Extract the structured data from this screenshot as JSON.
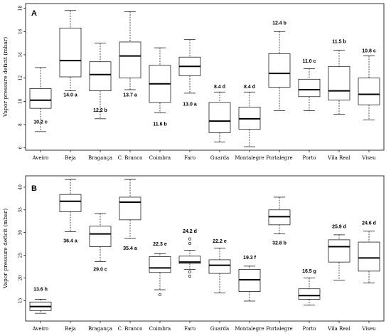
{
  "chart_data": [
    {
      "panel": "A",
      "type": "boxplot",
      "ylabel": "Vapor pressure deficit (mbar)",
      "yticks": [
        6,
        8,
        10,
        12,
        14,
        16,
        18
      ],
      "ylim": [
        5.8,
        18.4
      ],
      "grid": false,
      "categories": [
        "Aveiro",
        "Beja",
        "Bragança",
        "C. Branco",
        "Coimbra",
        "Faro",
        "Guarda",
        "Montalegre",
        "Portalegre",
        "Porto",
        "Vila Real",
        "Viseu"
      ],
      "boxes": [
        {
          "whisker_low": 7.4,
          "q1": 9.4,
          "median": 10.1,
          "q3": 11.1,
          "whisker_high": 12.9,
          "outliers": []
        },
        {
          "whisker_low": 10.9,
          "q1": 12.1,
          "median": 13.5,
          "q3": 16.3,
          "whisker_high": 17.8,
          "outliers": []
        },
        {
          "whisker_low": 8.5,
          "q1": 10.9,
          "median": 12.3,
          "q3": 13.4,
          "whisker_high": 15.0,
          "outliers": []
        },
        {
          "whisker_low": 11.0,
          "q1": 12.0,
          "median": 13.9,
          "q3": 15.1,
          "whisker_high": 17.7,
          "outliers": []
        },
        {
          "whisker_low": 9.0,
          "q1": 9.9,
          "median": 11.5,
          "q3": 13.1,
          "whisker_high": 14.6,
          "outliers": []
        },
        {
          "whisker_low": 10.7,
          "q1": 12.2,
          "median": 13.0,
          "q3": 13.8,
          "whisker_high": 15.3,
          "outliers": []
        },
        {
          "whisker_low": 6.5,
          "q1": 7.3,
          "median": 8.3,
          "q3": 9.9,
          "whisker_high": 10.8,
          "outliers": []
        },
        {
          "whisker_low": 6.1,
          "q1": 7.6,
          "median": 8.5,
          "q3": 9.5,
          "whisker_high": 10.8,
          "outliers": []
        },
        {
          "whisker_low": 9.2,
          "q1": 11.2,
          "median": 12.4,
          "q3": 14.1,
          "whisker_high": 16.0,
          "outliers": []
        },
        {
          "whisker_low": 9.2,
          "q1": 10.4,
          "median": 11.0,
          "q3": 11.9,
          "whisker_high": 12.8,
          "outliers": []
        },
        {
          "whisker_low": 8.9,
          "q1": 10.1,
          "median": 10.9,
          "q3": 13.0,
          "whisker_high": 14.4,
          "outliers": []
        },
        {
          "whisker_low": 8.4,
          "q1": 9.7,
          "median": 10.6,
          "q3": 12.0,
          "whisker_high": 13.9,
          "outliers": []
        }
      ],
      "annotations": [
        {
          "text": "10.2 c",
          "y": 8.2
        },
        {
          "text": "14.0 a",
          "y": 10.5
        },
        {
          "text": "12.2 b",
          "y": 9.2
        },
        {
          "text": "13.7 a",
          "y": 10.5
        },
        {
          "text": "11.6 b",
          "y": 8.0
        },
        {
          "text": "13.0 a",
          "y": 9.7
        },
        {
          "text": "8.4 d",
          "y": 11.2
        },
        {
          "text": "8.4 d",
          "y": 11.2
        },
        {
          "text": "12.4 b",
          "y": 16.7
        },
        {
          "text": "11.0 c",
          "y": 13.4
        },
        {
          "text": "11.5 b",
          "y": 15.1
        },
        {
          "text": "10.8 c",
          "y": 14.3
        }
      ]
    },
    {
      "panel": "B",
      "type": "boxplot",
      "ylabel": "Vapor pressure deficit (mbar)",
      "yticks": [
        15,
        20,
        25,
        30,
        35,
        40
      ],
      "ylim": [
        10.5,
        42.5
      ],
      "grid": false,
      "categories": [
        "Aveiro",
        "Beja",
        "Bragança",
        "C. Branco",
        "Coimbra",
        "Faro",
        "Guarda",
        "Montalegre",
        "Portalegre",
        "Porto",
        "Vila Real",
        "Viseu"
      ],
      "boxes": [
        {
          "whisker_low": 12.2,
          "q1": 12.8,
          "median": 13.7,
          "q3": 14.7,
          "whisker_high": 15.3,
          "outliers": []
        },
        {
          "whisker_low": 30.2,
          "q1": 34.6,
          "median": 36.9,
          "q3": 38.4,
          "whisker_high": 41.7,
          "outliers": []
        },
        {
          "whisker_low": 23.6,
          "q1": 26.9,
          "median": 29.7,
          "q3": 31.4,
          "whisker_high": 34.2,
          "outliers": []
        },
        {
          "whisker_low": 28.7,
          "q1": 32.8,
          "median": 36.7,
          "q3": 37.8,
          "whisker_high": 41.7,
          "outliers": []
        },
        {
          "whisker_low": 17.4,
          "q1": 21.2,
          "median": 22.2,
          "q3": 24.7,
          "whisker_high": 25.3,
          "outliers": [
            16.3
          ]
        },
        {
          "whisker_low": 21.9,
          "q1": 23.2,
          "median": 23.5,
          "q3": 24.8,
          "whisker_high": 26.1,
          "outliers": [
            20.4,
            21.3,
            27.6,
            28.6
          ]
        },
        {
          "whisker_low": 16.7,
          "q1": 21.0,
          "median": 22.8,
          "q3": 24.0,
          "whisker_high": 26.6,
          "outliers": []
        },
        {
          "whisker_low": 14.9,
          "q1": 17.0,
          "median": 19.6,
          "q3": 21.9,
          "whisker_high": 22.6,
          "outliers": []
        },
        {
          "whisker_low": 29.7,
          "q1": 31.7,
          "median": 33.5,
          "q3": 35.0,
          "whisker_high": 37.8,
          "outliers": []
        },
        {
          "whisker_low": 14.0,
          "q1": 15.3,
          "median": 16.1,
          "q3": 17.6,
          "whisker_high": 20.0,
          "outliers": []
        },
        {
          "whisker_low": 19.5,
          "q1": 23.5,
          "median": 26.9,
          "q3": 28.4,
          "whisker_high": 29.5,
          "outliers": []
        },
        {
          "whisker_low": 18.9,
          "q1": 21.5,
          "median": 24.4,
          "q3": 27.9,
          "whisker_high": 30.3,
          "outliers": []
        }
      ],
      "annotations": [
        {
          "text": "13.6 h",
          "y": 17.4
        },
        {
          "text": "36.4 a",
          "y": 28.1
        },
        {
          "text": "29.0 c",
          "y": 21.8
        },
        {
          "text": "35.4 a",
          "y": 26.4
        },
        {
          "text": "22.3 e",
          "y": 27.4
        },
        {
          "text": "24.2 d",
          "y": 30.2
        },
        {
          "text": "22.2 e",
          "y": 28.0
        },
        {
          "text": "19.3 f",
          "y": 24.4
        },
        {
          "text": "32.8 b",
          "y": 27.6
        },
        {
          "text": "16.5 g",
          "y": 21.4
        },
        {
          "text": "25.9 d",
          "y": 31.2
        },
        {
          "text": "24.6 d",
          "y": 32.0
        }
      ]
    }
  ]
}
